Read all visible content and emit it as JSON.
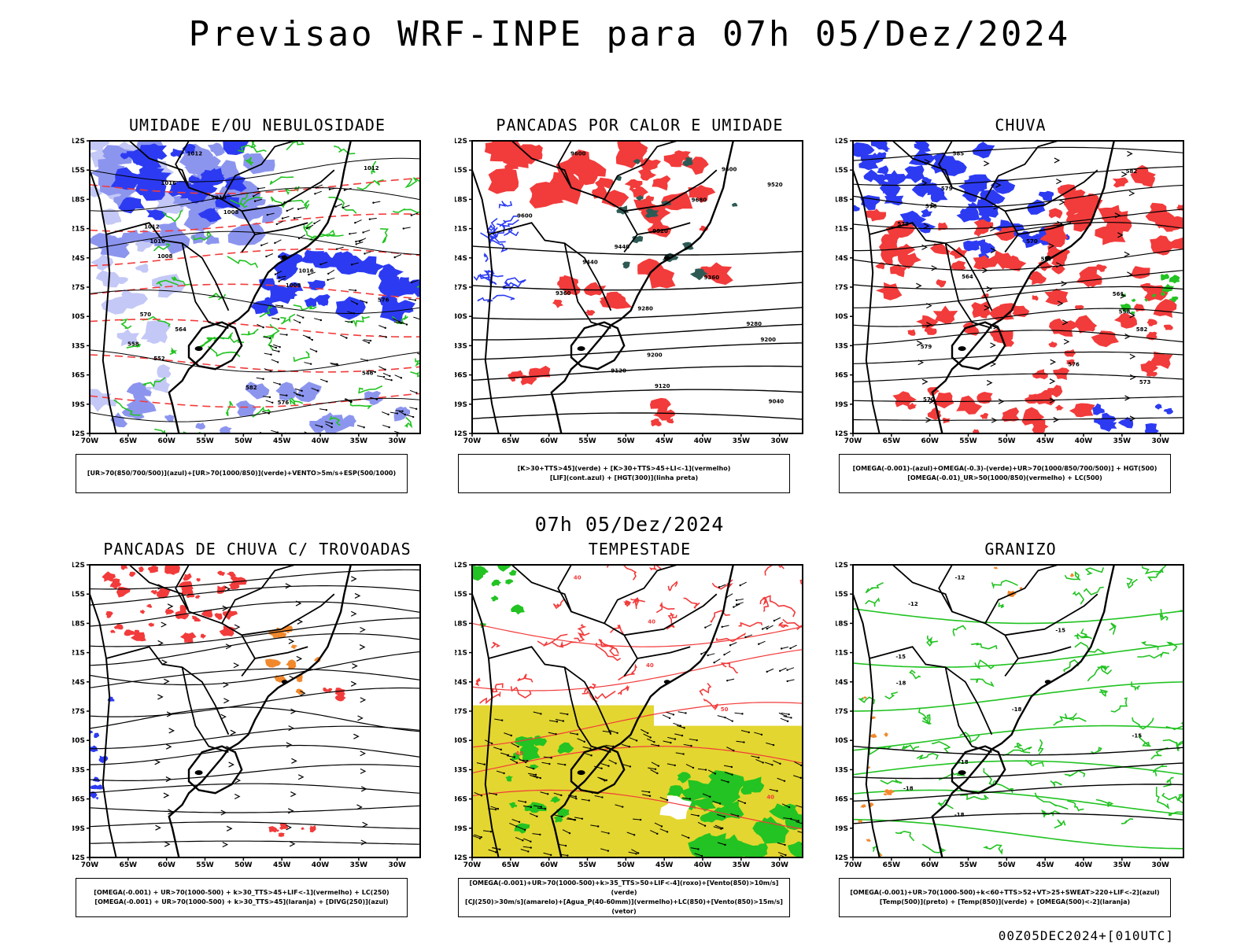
{
  "title": "Previsao WRF-INPE  para 07h 05/Dez/2024",
  "mid_title": "07h 05/Dez/2024",
  "footer": "00Z05DEC2024+[010UTC]",
  "lat_ticks": [
    "12S",
    "15S",
    "18S",
    "21S",
    "24S",
    "27S",
    "30S",
    "33S",
    "36S",
    "39S",
    "42S"
  ],
  "lon_ticks": [
    "70W",
    "65W",
    "60W",
    "55W",
    "50W",
    "45W",
    "40W",
    "35W",
    "30W"
  ],
  "colors": {
    "blue": "#2c3bf2",
    "light_blue": "#8c95ee",
    "lavender": "#c4c8f6",
    "green": "#22c322",
    "red": "#f23b3b",
    "orange": "#f2882c",
    "teal": "#2e5a55",
    "yellow": "#e3d630",
    "purple": "#8a2ad0"
  },
  "panels": [
    {
      "id": "umidade",
      "title": "UMIDADE E/OU NEBULOSIDADE",
      "legend": [
        "[UR>70(850/700/500)](azul)+[UR>70(1000/850)](verde)+VENTO>5m/s+ESP(500/1000)"
      ],
      "contour_labels": [
        "1012",
        "1012",
        "1016",
        "1016",
        "1008",
        "1012",
        "1016",
        "1008",
        "1016",
        "1008",
        "576",
        "570",
        "564",
        "558",
        "552",
        "546",
        "582",
        "576"
      ]
    },
    {
      "id": "pancadas-calor",
      "title": "PANCADAS POR CALOR E UMIDADE",
      "legend": [
        "[K>30+TTS>45](verde) + [K>30+TTS>45+LI<-1](vermelho)",
        "[LIF](cont.azul) + [HGT(300)](linha preta)"
      ],
      "contour_labels": [
        "9600",
        "9600",
        "9520",
        "9680",
        "9600",
        "9520",
        "9440",
        "9440",
        "9360",
        "9360",
        "9280",
        "9280",
        "9200",
        "9200",
        "9120",
        "9120",
        "9040"
      ]
    },
    {
      "id": "chuva",
      "title": "CHUVA",
      "legend": [
        "[OMEGA(-0.001)-(azul)+OMEGA(-0.3)-(verde)+UR>70(1000/850/700/500)] + HGT(500)",
        "[OMEGA(-0.01)_UR>50(1000/850)(vermelho) + LC(500)"
      ],
      "contour_labels": [
        "585",
        "582",
        "579",
        "576",
        "573",
        "570",
        "567",
        "564",
        "561",
        "558",
        "582",
        "579",
        "576",
        "573",
        "570"
      ]
    },
    {
      "id": "trovoadas",
      "title": "PANCADAS DE CHUVA C/ TROVOADAS",
      "legend": [
        "[OMEGA(-0.001) + UR>70(1000-500) + k>30_TTS>45+LIF<-1](vermelho) + LC(250)",
        "[OMEGA(-0.001) + UR>70(1000-500) + k>30_TTS>45](laranja) + [DIVG(250)](azul)"
      ],
      "contour_labels": []
    },
    {
      "id": "tempestade",
      "title": "TEMPESTADE",
      "legend": [
        "[OMEGA(-0.001)+UR>70(1000-500)+k>35_TTS>50+LIF<-4](roxo)+[Vento(850)>10m/s](verde)",
        "[CJ(250)>30m/s](amarelo)+[Agua_P(40-60mm)](vermelho)+LC(850)+[Vento(850)>15m/s](vetor)"
      ],
      "contour_labels": [
        "40",
        "40",
        "40",
        "50",
        "40",
        "40"
      ]
    },
    {
      "id": "granizo",
      "title": "GRANIZO",
      "legend": [
        "[OMEGA(-0.001)+UR>70(1000-500)+k<60+TTS>52+VT>25+SWEAT>220+LIF<-2](azul)",
        "[Temp(500)](preto) + [Temp(850)](verde) + [OMEGA(500)<-2](laranja)"
      ],
      "contour_labels": [
        "-12",
        "-12",
        "-15",
        "-15",
        "-18",
        "-18",
        "-15",
        "-18",
        "-18",
        "-18"
      ]
    }
  ]
}
